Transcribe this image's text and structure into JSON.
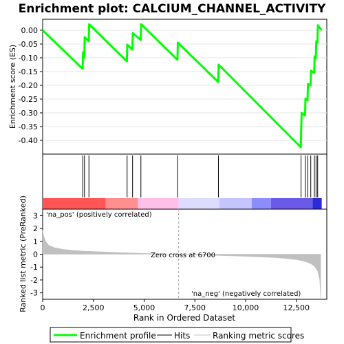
{
  "chart_data": {
    "type": "line",
    "title": "Enrichment plot: CALCIUM_CHANNEL_ACTIVITY",
    "es_panel": {
      "ylabel": "Enrichment score (ES)",
      "ylim": [
        -0.45,
        0.04
      ],
      "yticks": [
        0.0,
        -0.05,
        -0.1,
        -0.15,
        -0.2,
        -0.25,
        -0.3,
        -0.35,
        -0.4
      ],
      "ytick_labels": [
        "0.00",
        "-0.05",
        "-0.10",
        "-0.15",
        "-0.20",
        "-0.25",
        "-0.30",
        "-0.35",
        "-0.40"
      ],
      "series": [
        {
          "name": "Enrichment profile",
          "color": "#00ff00",
          "x": [
            0,
            1970,
            1990,
            2050,
            2070,
            2270,
            2290,
            4150,
            4170,
            4420,
            4440,
            4830,
            4850,
            6640,
            6660,
            8650,
            8670,
            12720,
            12740,
            12760,
            12930,
            12950,
            13050,
            13070,
            13200,
            13220,
            13380,
            13400,
            13460,
            13480,
            13540,
            13560,
            13750
          ],
          "y": [
            0.0,
            -0.14,
            -0.08,
            -0.1,
            -0.025,
            -0.04,
            0.022,
            -0.113,
            -0.052,
            -0.07,
            -0.01,
            -0.035,
            0.022,
            -0.107,
            -0.045,
            -0.188,
            -0.125,
            -0.425,
            -0.362,
            -0.3,
            -0.31,
            -0.248,
            -0.255,
            -0.195,
            -0.2,
            -0.147,
            -0.155,
            -0.095,
            -0.102,
            -0.04,
            -0.045,
            0.018,
            0.0
          ]
        }
      ]
    },
    "hits": {
      "name": "Hits",
      "x": [
        1980,
        2060,
        2280,
        4160,
        4430,
        4840,
        6650,
        8660,
        12730,
        12940,
        13060,
        13210,
        13390,
        13470,
        13550
      ]
    },
    "ranked_metric_panel": {
      "ylabel": "Ranked list metric (PreRanked)",
      "xlabel": "Rank in Ordered Dataset",
      "ylim": [
        -3.5,
        3.5
      ],
      "yticks": [
        3,
        2,
        1,
        0,
        -1,
        -2,
        -3
      ],
      "xlim": [
        0,
        14000
      ],
      "xticks": [
        0,
        2500,
        5000,
        7500,
        10000,
        12500
      ],
      "xtick_labels": [
        "0",
        "2,500",
        "5,000",
        "7,500",
        "10,000",
        "12,500"
      ],
      "series": [
        {
          "name": "Ranking metric scores",
          "color": "#c0c0c0",
          "x": [
            0,
            50,
            150,
            300,
            600,
            1000,
            1500,
            2000,
            3000,
            4000,
            5000,
            6000,
            6700,
            7500,
            8500,
            9500,
            10500,
            11500,
            12000,
            12500,
            12900,
            13200,
            13400,
            13550,
            13650,
            13700
          ],
          "y": [
            1.85,
            1.45,
            1.0,
            0.7,
            0.5,
            0.38,
            0.3,
            0.24,
            0.18,
            0.12,
            0.06,
            0.02,
            0.0,
            -0.04,
            -0.09,
            -0.14,
            -0.2,
            -0.27,
            -0.33,
            -0.42,
            -0.55,
            -0.72,
            -0.95,
            -1.3,
            -2.0,
            -3.4
          ]
        }
      ],
      "zero_cross_label": "Zero cross at 6700",
      "zero_cross_x": 6700,
      "pos_label": "'na_pos' (positively correlated)",
      "neg_label": "'na_neg' (negatively correlated)",
      "pos_color": "#cc0000",
      "neg_color": "#0000cc"
    },
    "color_bar": {
      "segments": [
        {
          "from": 0,
          "to": 3100,
          "color": "#ff5555"
        },
        {
          "from": 3100,
          "to": 4700,
          "color": "#ff8e8e"
        },
        {
          "from": 4700,
          "to": 6700,
          "color": "#ffc0e8"
        },
        {
          "from": 6700,
          "to": 8700,
          "color": "#dcdcff"
        },
        {
          "from": 8700,
          "to": 10300,
          "color": "#c4c4ff"
        },
        {
          "from": 10300,
          "to": 11250,
          "color": "#8c8cff"
        },
        {
          "from": 11250,
          "to": 13300,
          "color": "#6a5ae8"
        },
        {
          "from": 13300,
          "to": 13750,
          "color": "#2a2ad8"
        }
      ]
    },
    "legend": {
      "placement": "bottom",
      "items": [
        {
          "label": "Enrichment profile",
          "color": "#00ff00",
          "kind": "line-thick"
        },
        {
          "label": "Hits",
          "color": "#000000",
          "kind": "line"
        },
        {
          "label": "Ranking metric scores",
          "color": "#c0c0c0",
          "kind": "line"
        }
      ]
    }
  }
}
